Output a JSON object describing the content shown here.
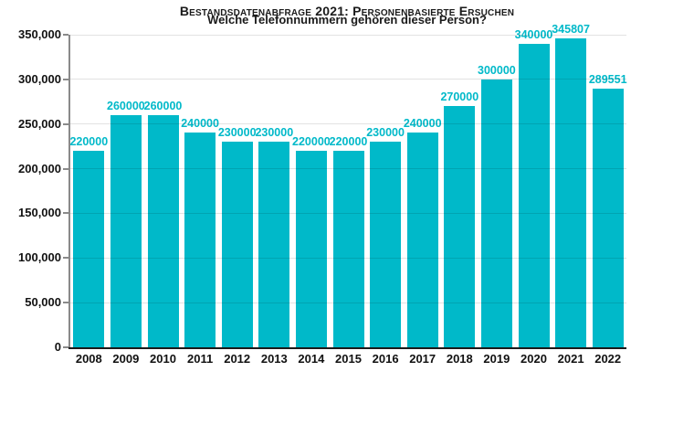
{
  "chart_data": {
    "type": "bar",
    "title": "Bestandsdatenabfrage 2021: Personenbasierte Ersuchen",
    "subtitle": "Welche Telefonnummern gehören dieser Person?",
    "categories": [
      "2008",
      "2009",
      "2010",
      "2011",
      "2012",
      "2013",
      "2014",
      "2015",
      "2016",
      "2017",
      "2018",
      "2019",
      "2020",
      "2021",
      "2022"
    ],
    "values": [
      220000,
      260000,
      260000,
      240000,
      230000,
      230000,
      220000,
      220000,
      230000,
      240000,
      270000,
      300000,
      340000,
      345807,
      289551
    ],
    "bar_value_labels": [
      "220000",
      "260000",
      "260000",
      "240000",
      "230000",
      "230000",
      "220000",
      "220000",
      "230000",
      "240000",
      "270000",
      "300000",
      "340000",
      "345807",
      "289551"
    ],
    "ylim": [
      0,
      350000
    ],
    "ytick_step": 50000,
    "ytick_labels": [
      "0",
      "50,000",
      "100,000",
      "150,000",
      "200,000",
      "250,000",
      "300,000",
      "350,000"
    ],
    "grid": true,
    "legend": false,
    "bar_color": "#00b9c9",
    "value_label_color": "#00b9c9",
    "axis_text_color": "#111111"
  }
}
